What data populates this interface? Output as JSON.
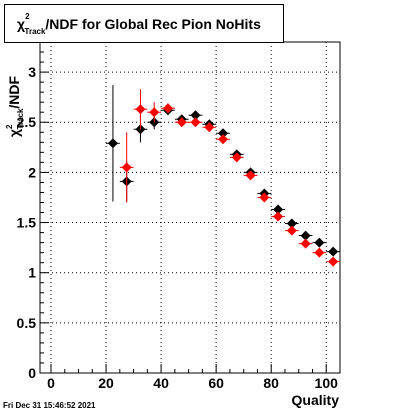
{
  "chart_data": {
    "type": "scatter",
    "title": {
      "prefix": "χ",
      "sup": "2",
      "sub": "Track",
      "rest": "/NDF for Global Rec Pion NoHits"
    },
    "xlabel": "Quality",
    "ylabel": {
      "prefix": "χ",
      "sup": "2",
      "sub": "Track",
      "rest": "/NDF"
    },
    "xlim": [
      -4,
      105
    ],
    "ylim": [
      0,
      3.3
    ],
    "grid": true,
    "x_ticks": [
      "0",
      "20",
      "40",
      "60",
      "80",
      "100"
    ],
    "y_ticks": [
      "0",
      "0.5",
      "1",
      "1.5",
      "2",
      "2.5",
      "3"
    ],
    "series": [
      {
        "color": "#000000",
        "points": [
          {
            "x": 22.5,
            "y": 2.29,
            "yerr": 0.58
          },
          {
            "x": 27.5,
            "y": 1.91,
            "yerr": 0.2
          },
          {
            "x": 32.5,
            "y": 2.43,
            "yerr": 0.13
          },
          {
            "x": 37.5,
            "y": 2.5,
            "yerr": 0.07
          },
          {
            "x": 42.5,
            "y": 2.62,
            "yerr": 0.05
          },
          {
            "x": 47.5,
            "y": 2.53,
            "yerr": 0.04
          },
          {
            "x": 52.5,
            "y": 2.57,
            "yerr": 0.03
          },
          {
            "x": 57.5,
            "y": 2.48,
            "yerr": 0.03
          },
          {
            "x": 62.5,
            "y": 2.39,
            "yerr": 0.02
          },
          {
            "x": 67.5,
            "y": 2.18,
            "yerr": 0.02
          },
          {
            "x": 72.5,
            "y": 2.0,
            "yerr": 0.02
          },
          {
            "x": 77.5,
            "y": 1.79,
            "yerr": 0.02
          },
          {
            "x": 82.5,
            "y": 1.63,
            "yerr": 0.02
          },
          {
            "x": 87.5,
            "y": 1.49,
            "yerr": 0.02
          },
          {
            "x": 92.5,
            "y": 1.37,
            "yerr": 0.02
          },
          {
            "x": 97.5,
            "y": 1.3,
            "yerr": 0.02
          },
          {
            "x": 102.5,
            "y": 1.21,
            "yerr": 0.02
          }
        ]
      },
      {
        "color": "#ff0000",
        "points": [
          {
            "x": 27.5,
            "y": 2.05,
            "yerr": 0.35
          },
          {
            "x": 32.5,
            "y": 2.63,
            "yerr": 0.2
          },
          {
            "x": 37.5,
            "y": 2.6,
            "yerr": 0.1
          },
          {
            "x": 42.5,
            "y": 2.64,
            "yerr": 0.05
          },
          {
            "x": 47.5,
            "y": 2.5,
            "yerr": 0.04
          },
          {
            "x": 52.5,
            "y": 2.5,
            "yerr": 0.03
          },
          {
            "x": 57.5,
            "y": 2.45,
            "yerr": 0.03
          },
          {
            "x": 62.5,
            "y": 2.33,
            "yerr": 0.02
          },
          {
            "x": 67.5,
            "y": 2.15,
            "yerr": 0.02
          },
          {
            "x": 72.5,
            "y": 1.97,
            "yerr": 0.02
          },
          {
            "x": 77.5,
            "y": 1.75,
            "yerr": 0.02
          },
          {
            "x": 82.5,
            "y": 1.56,
            "yerr": 0.02
          },
          {
            "x": 87.5,
            "y": 1.42,
            "yerr": 0.02
          },
          {
            "x": 92.5,
            "y": 1.29,
            "yerr": 0.02
          },
          {
            "x": 97.5,
            "y": 1.2,
            "yerr": 0.02
          },
          {
            "x": 102.5,
            "y": 1.11,
            "yerr": 0.02
          }
        ]
      }
    ]
  },
  "footer": {
    "date": "Fri Dec 31 15:46:52 2021"
  }
}
